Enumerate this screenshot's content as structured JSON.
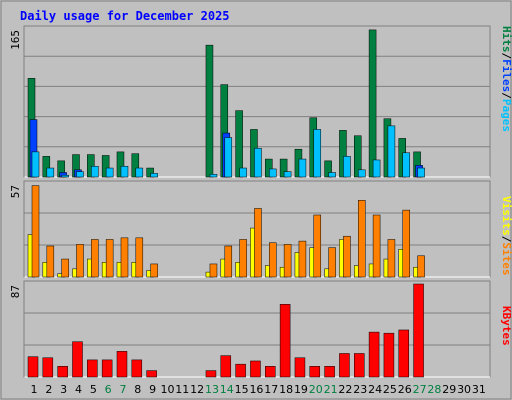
{
  "chart_data": [
    {
      "type": "bar",
      "title": "Daily usage for December 2025",
      "ylim": [
        0,
        165
      ],
      "y_tick_label": "165",
      "categories": [
        "1",
        "2",
        "3",
        "4",
        "5",
        "6",
        "7",
        "8",
        "9",
        "10",
        "11",
        "12",
        "13",
        "14",
        "15",
        "16",
        "17",
        "18",
        "19",
        "20",
        "21",
        "22",
        "23",
        "24",
        "25",
        "26",
        "27",
        "28",
        "29",
        "30",
        "31"
      ],
      "series": [
        {
          "name": "Hits",
          "values": [
            110,
            23,
            18,
            25,
            25,
            24,
            28,
            26,
            10,
            0,
            0,
            0,
            147,
            103,
            74,
            53,
            20,
            20,
            31,
            66,
            18,
            52,
            46,
            164,
            65,
            43,
            28,
            0,
            0,
            0,
            0
          ]
        },
        {
          "name": "Files",
          "values": [
            64,
            0,
            5,
            8,
            0,
            0,
            0,
            0,
            0,
            0,
            0,
            0,
            0,
            49,
            0,
            0,
            0,
            0,
            0,
            0,
            0,
            0,
            0,
            0,
            0,
            0,
            13,
            0,
            0,
            0,
            0
          ]
        },
        {
          "name": "Pages",
          "values": [
            28,
            10,
            2,
            6,
            12,
            10,
            12,
            10,
            4,
            0,
            0,
            0,
            3,
            44,
            10,
            32,
            9,
            6,
            20,
            53,
            5,
            23,
            8,
            19,
            57,
            27,
            10,
            0,
            0,
            0,
            0
          ]
        }
      ]
    },
    {
      "type": "bar",
      "ylim": [
        0,
        57
      ],
      "y_tick_label": "57",
      "categories": [
        "1",
        "2",
        "3",
        "4",
        "5",
        "6",
        "7",
        "8",
        "9",
        "10",
        "11",
        "12",
        "13",
        "14",
        "15",
        "16",
        "17",
        "18",
        "19",
        "20",
        "21",
        "22",
        "23",
        "24",
        "25",
        "26",
        "27",
        "28",
        "29",
        "30",
        "31"
      ],
      "series": [
        {
          "name": "Visits",
          "values": [
            26,
            9,
            2,
            5,
            11,
            9,
            9,
            9,
            4,
            0,
            0,
            0,
            3,
            11,
            9,
            30,
            7,
            6,
            15,
            18,
            5,
            23,
            7,
            8,
            11,
            17,
            6,
            0,
            0,
            0,
            0
          ]
        },
        {
          "name": "Sites",
          "values": [
            56,
            19,
            11,
            20,
            23,
            23,
            24,
            24,
            8,
            0,
            0,
            0,
            8,
            19,
            23,
            42,
            21,
            20,
            22,
            38,
            18,
            25,
            47,
            38,
            23,
            41,
            13,
            0,
            0,
            0,
            0
          ]
        }
      ]
    },
    {
      "type": "bar",
      "ylim": [
        0,
        87
      ],
      "y_tick_label": "87",
      "categories": [
        "1",
        "2",
        "3",
        "4",
        "5",
        "6",
        "7",
        "8",
        "9",
        "10",
        "11",
        "12",
        "13",
        "14",
        "15",
        "16",
        "17",
        "18",
        "19",
        "20",
        "21",
        "22",
        "23",
        "24",
        "25",
        "26",
        "27",
        "28",
        "29",
        "30",
        "31"
      ],
      "series": [
        {
          "name": "KBytes",
          "values": [
            19,
            18,
            10,
            33,
            16,
            16,
            24,
            16,
            6,
            0,
            0,
            0,
            6,
            20,
            12,
            15,
            10,
            68,
            18,
            10,
            10,
            22,
            22,
            42,
            41,
            44,
            87,
            0,
            0,
            0,
            0
          ]
        }
      ]
    }
  ],
  "right_labels": {
    "panel1": [
      "Hits",
      "/",
      "Files",
      "/",
      "Pages"
    ],
    "panel2": [
      "Visits",
      "/",
      "Sites"
    ],
    "panel3": [
      "KBytes"
    ]
  },
  "weekend_days": [
    "6",
    "7",
    "13",
    "14",
    "20",
    "21",
    "27",
    "28"
  ],
  "colors": {
    "background": "#c0c0c0",
    "title": "#0000ff",
    "hits": "#008040",
    "files": "#0040ff",
    "pages": "#00c0ff",
    "visits": "#ffff00",
    "sites": "#ff8000",
    "kbytes": "#ff0000",
    "weekend_label": "#008040",
    "separator": "#808080"
  }
}
